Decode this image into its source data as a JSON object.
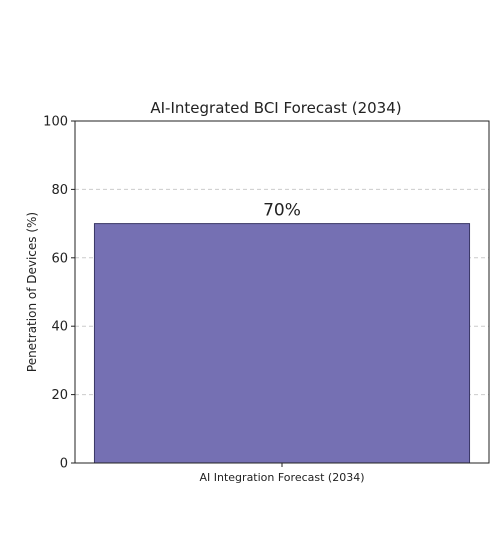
{
  "chart_data": {
    "type": "bar",
    "title": "AI-Integrated BCI Forecast (2034)",
    "xlabel": "",
    "ylabel": "Penetration of Devices (%)",
    "categories": [
      "AI Integration Forecast (2034)"
    ],
    "values": [
      70
    ],
    "data_labels": [
      "70%"
    ],
    "ylim": [
      0,
      100
    ],
    "yticks": [
      0,
      20,
      40,
      60,
      80,
      100
    ],
    "grid": "horizontal-dashed",
    "colors": {
      "bar": "#7570b3",
      "bar_edge": "#3a3766",
      "grid": "#cccccc",
      "axis": "#222222"
    }
  }
}
